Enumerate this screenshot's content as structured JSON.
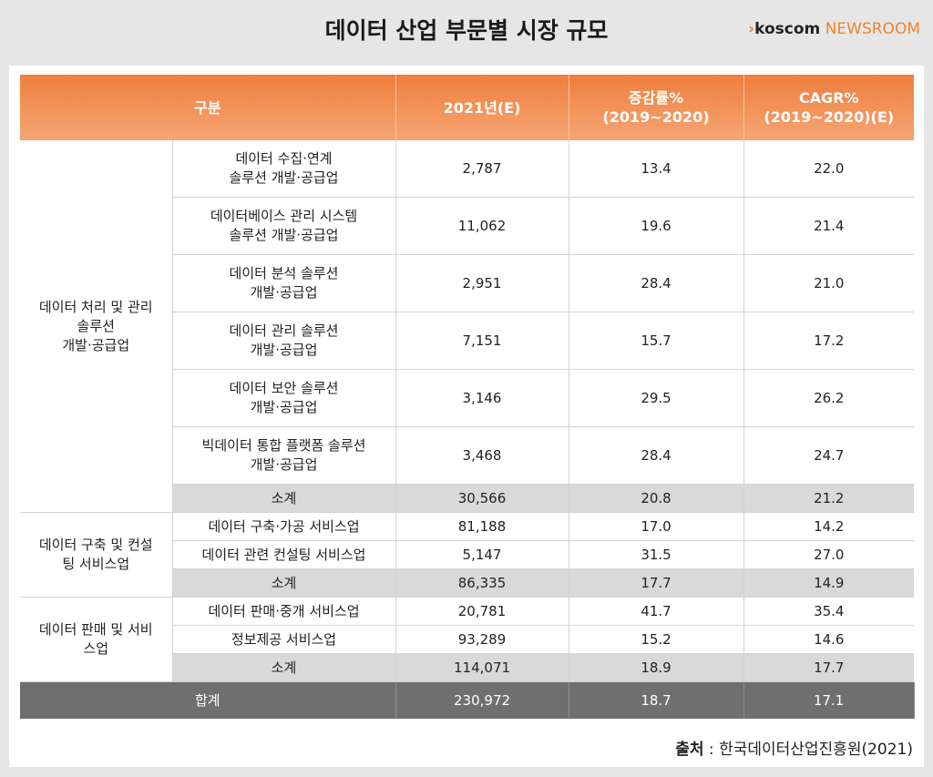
{
  "header": {
    "title": "데이터 산업 부문별 시장 규모",
    "brand_arrow": "›",
    "brand_name": "koscom",
    "brand_suffix": "NEWSROOM"
  },
  "table": {
    "headers": [
      "구분",
      "2021년(E)",
      "증감률%\n(2019~2020)",
      "CAGR%\n(2019~2020)(E)"
    ],
    "groups": [
      {
        "category": "데이터 처리 및 관리\n솔루션\n개발·공급업",
        "rows": [
          {
            "name": "데이터 수집·연계\n솔루션 개발·공급업",
            "value2021": "2,787",
            "growth": "13.4",
            "cagr": "22.0"
          },
          {
            "name": "데이터베이스 관리 시스템\n솔루션 개발·공급업",
            "value2021": "11,062",
            "growth": "19.6",
            "cagr": "21.4"
          },
          {
            "name": "데이터 분석 솔루션\n개발·공급업",
            "value2021": "2,951",
            "growth": "28.4",
            "cagr": "21.0"
          },
          {
            "name": "데이터 관리 솔루션\n개발·공급업",
            "value2021": "7,151",
            "growth": "15.7",
            "cagr": "17.2"
          },
          {
            "name": "데이터 보안 솔루션\n개발·공급업",
            "value2021": "3,146",
            "growth": "29.5",
            "cagr": "26.2"
          },
          {
            "name": "빅데이터 통합 플랫폼 솔루션\n개발·공급업",
            "value2021": "3,468",
            "growth": "28.4",
            "cagr": "24.7"
          }
        ],
        "subtotal": {
          "name": "소계",
          "value2021": "30,566",
          "growth": "20.8",
          "cagr": "21.2"
        }
      },
      {
        "category": "데이터 구축 및 컨설\n팅 서비스업",
        "rows": [
          {
            "name": "데이터 구축·가공 서비스업",
            "value2021": "81,188",
            "growth": "17.0",
            "cagr": "14.2"
          },
          {
            "name": "데이터 관련 컨설팅 서비스업",
            "value2021": "5,147",
            "growth": "31.5",
            "cagr": "27.0"
          }
        ],
        "subtotal": {
          "name": "소계",
          "value2021": "86,335",
          "growth": "17.7",
          "cagr": "14.9"
        }
      },
      {
        "category": "데이터 판매 및 서비\n스업",
        "rows": [
          {
            "name": "데이터 판매·중개 서비스업",
            "value2021": "20,781",
            "growth": "41.7",
            "cagr": "35.4"
          },
          {
            "name": "정보제공 서비스업",
            "value2021": "93,289",
            "growth": "15.2",
            "cagr": "14.6"
          }
        ],
        "subtotal": {
          "name": "소계",
          "value2021": "114,071",
          "growth": "18.9",
          "cagr": "17.7"
        }
      }
    ],
    "total": {
      "name": "합계",
      "value2021": "230,972",
      "growth": "18.7",
      "cagr": "17.1"
    }
  },
  "source": {
    "label": "출처",
    "text": " : 한국데이터산업진흥원(2021)"
  },
  "colors": {
    "header_orange": "#ef7e3d",
    "brand_orange": "#f0842c",
    "subtotal_gray": "#d9d9d9",
    "total_gray": "#6f6f6f"
  }
}
